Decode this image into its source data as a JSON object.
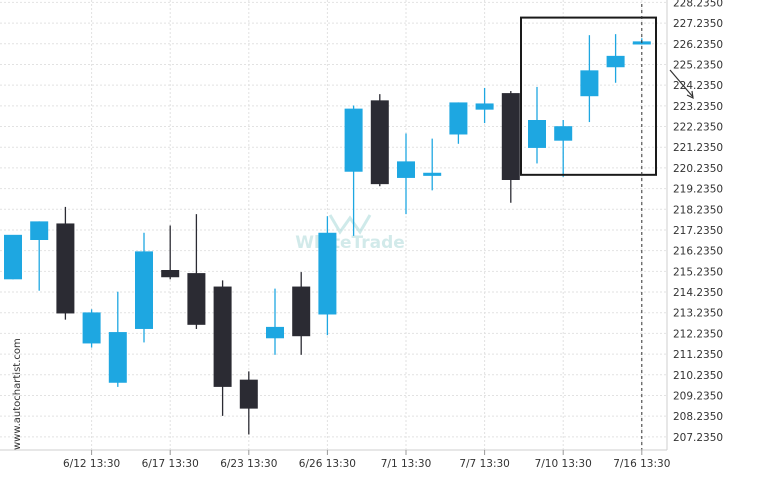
{
  "watermark": {
    "brand": "WhiteTrade",
    "side_text": "www.autochartist.com"
  },
  "colors": {
    "bull": "#1ea7e1",
    "bear": "#2b2b33",
    "grid": "#e2e2e2",
    "axis_text": "#333333",
    "pattern_box": "#1a1a1a",
    "arrow": "#333333",
    "vline": "#333333",
    "watermark": "#b9e0e0"
  },
  "chart_data": {
    "type": "candlestick",
    "title": "",
    "xlabel": "",
    "ylabel": "",
    "ylim": [
      206.6,
      228.35
    ],
    "y_ticks": [
      "228.2350",
      "227.2350",
      "226.2350",
      "225.2350",
      "224.2350",
      "223.2350",
      "222.2350",
      "221.2350",
      "220.2350",
      "219.2350",
      "218.2350",
      "217.2350",
      "216.2350",
      "215.2350",
      "214.2350",
      "213.2350",
      "212.2350",
      "211.2350",
      "210.2350",
      "209.2350",
      "208.2350",
      "207.2350"
    ],
    "x_ticks": [
      {
        "label": "6/12 13:30",
        "index": 3
      },
      {
        "label": "6/17 13:30",
        "index": 6
      },
      {
        "label": "6/23 13:30",
        "index": 9
      },
      {
        "label": "6/26 13:30",
        "index": 12
      },
      {
        "label": "7/1 13:30",
        "index": 15
      },
      {
        "label": "7/7 13:30",
        "index": 18
      },
      {
        "label": "7/10 13:30",
        "index": 21
      },
      {
        "label": "7/16 13:30",
        "index": 24
      }
    ],
    "candles": [
      {
        "o": 214.85,
        "h": 216.95,
        "l": 214.85,
        "c": 217.0
      },
      {
        "o": 216.75,
        "h": 217.65,
        "l": 214.3,
        "c": 217.65
      },
      {
        "o": 217.55,
        "h": 218.35,
        "l": 212.9,
        "c": 213.2
      },
      {
        "o": 211.75,
        "h": 213.4,
        "l": 211.55,
        "c": 213.25
      },
      {
        "o": 209.85,
        "h": 214.25,
        "l": 209.65,
        "c": 212.3
      },
      {
        "o": 212.45,
        "h": 217.1,
        "l": 211.8,
        "c": 216.2
      },
      {
        "o": 215.3,
        "h": 217.45,
        "l": 214.85,
        "c": 214.95
      },
      {
        "o": 215.15,
        "h": 218.0,
        "l": 212.45,
        "c": 212.65
      },
      {
        "o": 214.5,
        "h": 214.8,
        "l": 208.25,
        "c": 209.65
      },
      {
        "o": 210.0,
        "h": 210.4,
        "l": 207.35,
        "c": 208.6
      },
      {
        "o": 212.0,
        "h": 214.4,
        "l": 211.2,
        "c": 212.55
      },
      {
        "o": 214.5,
        "h": 215.2,
        "l": 211.2,
        "c": 212.1
      },
      {
        "o": 213.15,
        "h": 217.9,
        "l": 212.15,
        "c": 217.1
      },
      {
        "o": 220.05,
        "h": 223.25,
        "l": 216.95,
        "c": 223.1
      },
      {
        "o": 223.5,
        "h": 223.8,
        "l": 219.35,
        "c": 219.45
      },
      {
        "o": 219.75,
        "h": 221.9,
        "l": 218.0,
        "c": 220.55
      },
      {
        "o": 219.85,
        "h": 221.65,
        "l": 219.15,
        "c": 220.0
      },
      {
        "o": 221.85,
        "h": 223.4,
        "l": 221.4,
        "c": 223.4
      },
      {
        "o": 223.05,
        "h": 224.1,
        "l": 222.4,
        "c": 223.35
      },
      {
        "o": 223.85,
        "h": 223.95,
        "l": 218.55,
        "c": 219.65
      },
      {
        "o": 221.2,
        "h": 224.15,
        "l": 220.45,
        "c": 222.55
      },
      {
        "o": 221.55,
        "h": 222.55,
        "l": 219.8,
        "c": 222.25
      },
      {
        "o": 223.7,
        "h": 226.65,
        "l": 222.45,
        "c": 224.95
      },
      {
        "o": 225.1,
        "h": 226.7,
        "l": 224.35,
        "c": 225.65
      },
      {
        "o": 226.2,
        "h": 226.5,
        "l": 226.2,
        "c": 226.35
      }
    ],
    "pattern_box": {
      "from_index": 20,
      "to_index": 25,
      "top": 227.5,
      "bottom": 219.9
    },
    "forecast_arrow": {
      "direction": "down"
    },
    "current_time_index": 24
  }
}
